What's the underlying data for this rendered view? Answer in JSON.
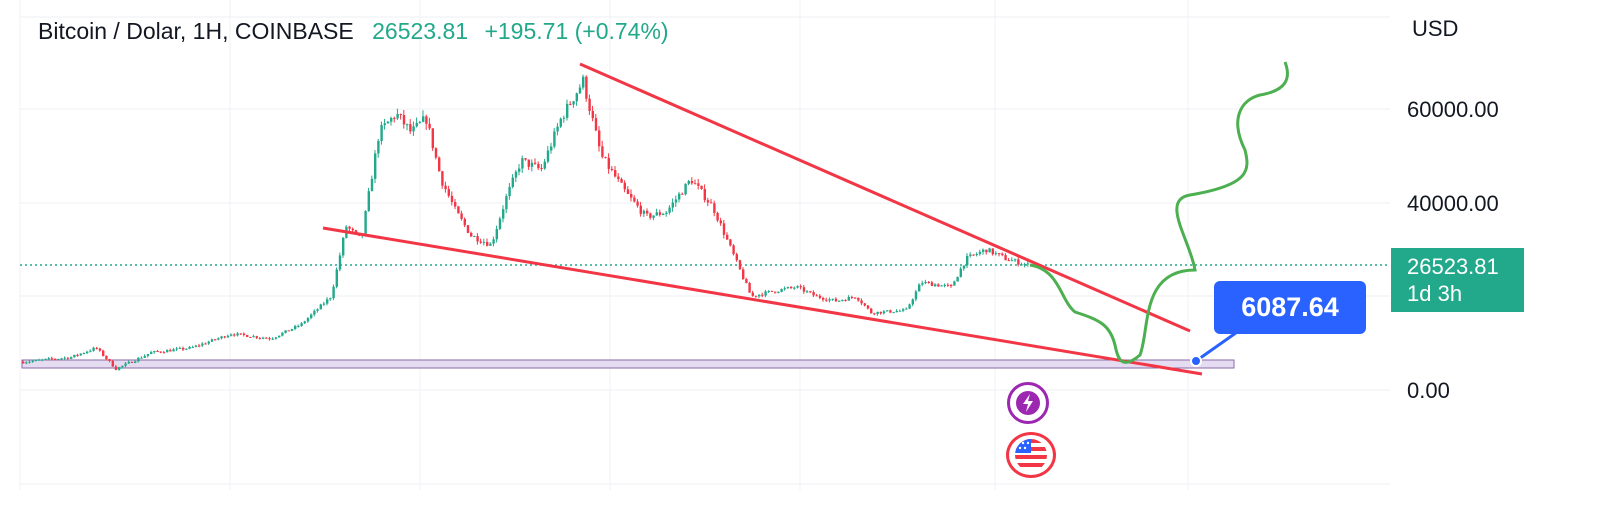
{
  "header": {
    "symbol": "Bitcoin / Dolar, 1H, COINBASE",
    "last_price": "26523.81",
    "change": "+195.71 (+0.74%)"
  },
  "axis": {
    "currency": "USD",
    "ticks": [
      "60000.00",
      "40000.00",
      "0.00"
    ]
  },
  "price_tag": {
    "price": "26523.81",
    "countdown": "1d 3h"
  },
  "callout": {
    "value": "6087.64"
  },
  "icons": {
    "event_1": "lightning-icon",
    "event_2": "us-flag-icon"
  },
  "colors": {
    "up": "#22a88a",
    "down": "#f23645",
    "trendline": "#f23645",
    "projection": "#4caf50",
    "callout": "#2962ff"
  },
  "chart_data": {
    "type": "candlestick",
    "title": "Bitcoin / Dolar, 1H, COINBASE",
    "ylabel": "USD",
    "ylim": [
      -3000,
      77000
    ],
    "yticks": [
      0,
      20000,
      40000,
      60000
    ],
    "last_price": 26523.81,
    "trend": "~3900 to ~68000, descending wedge to ~26500",
    "annotations": [
      "descending wedge",
      "support zone near 6087.64",
      "green projected path"
    ]
  }
}
